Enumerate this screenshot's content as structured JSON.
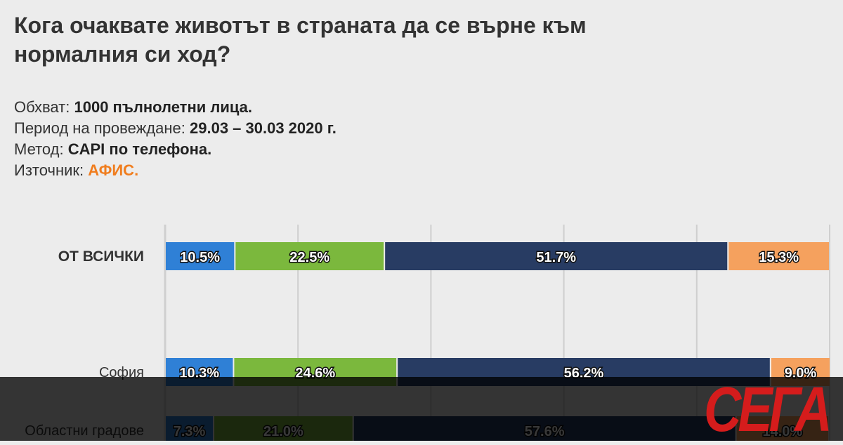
{
  "title": "Кога очаквате животът в страната да се върне към нормалния си ход?",
  "meta": [
    {
      "label": "Обхват:",
      "value": "1000 пълнолетни лица."
    },
    {
      "label": "Период на провеждане:",
      "value": "29.03 – 30.03 2020 г."
    },
    {
      "label": "Метод:",
      "value": "CAPI по телефона."
    },
    {
      "label": "Източник:",
      "value": "АФИС."
    }
  ],
  "colors": {
    "segment_1": "#2f80d6",
    "segment_2": "#7bb83d",
    "segment_3": "#283c63",
    "segment_4": "#f5a15e",
    "accent": "#f07d1e",
    "logo": "#d51c1c"
  },
  "chart_data": {
    "type": "bar",
    "orientation": "horizontal",
    "stacked": true,
    "categories": [
      "ОТ ВСИЧКИ",
      "София",
      "Областни градове"
    ],
    "series": [
      {
        "values": [
          10.5,
          10.3,
          7.3
        ]
      },
      {
        "values": [
          22.5,
          24.6,
          21.0
        ]
      },
      {
        "values": [
          51.7,
          56.2,
          57.6
        ]
      },
      {
        "values": [
          15.3,
          9.0,
          14.0
        ]
      }
    ],
    "value_labels": [
      [
        "10.5%",
        "22.5%",
        "51.7%",
        "15.3%"
      ],
      [
        "10.3%",
        "24.6%",
        "56.2%",
        "9.0%"
      ],
      [
        "7.3%",
        "21.0%",
        "57.6%",
        "14.0%"
      ]
    ],
    "xlim": [
      0,
      100
    ],
    "grid": true,
    "legend": "none"
  },
  "logo_text": "СЕГА"
}
